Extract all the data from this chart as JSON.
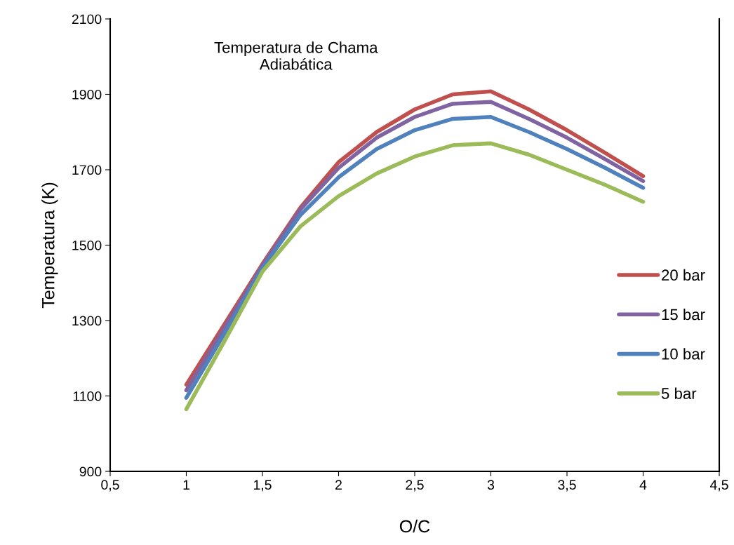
{
  "chart_data": {
    "type": "line",
    "title": "Temperatura de Chama\nAdiabática",
    "xlabel": "O/C",
    "ylabel": "Temperatura (K)",
    "x": [
      1,
      1.25,
      1.5,
      1.75,
      2,
      2.25,
      2.5,
      2.75,
      3,
      3.25,
      3.5,
      3.75,
      4
    ],
    "series": [
      {
        "name": "20 bar",
        "color": "#c0504d",
        "values": [
          1130,
          1290,
          1450,
          1600,
          1720,
          1800,
          1860,
          1900,
          1908,
          1860,
          1805,
          1745,
          1683
        ]
      },
      {
        "name": "15 bar",
        "color": "#8064a2",
        "values": [
          1115,
          1280,
          1445,
          1595,
          1705,
          1785,
          1840,
          1875,
          1880,
          1835,
          1785,
          1728,
          1670
        ]
      },
      {
        "name": "10 bar",
        "color": "#4f81bd",
        "values": [
          1095,
          1265,
          1440,
          1580,
          1680,
          1755,
          1805,
          1835,
          1840,
          1800,
          1755,
          1705,
          1652
        ]
      },
      {
        "name": "5 bar",
        "color": "#9bbb59",
        "values": [
          1065,
          1245,
          1430,
          1550,
          1630,
          1690,
          1735,
          1765,
          1770,
          1740,
          1700,
          1660,
          1615
        ]
      }
    ],
    "xlim": [
      0.5,
      4.5
    ],
    "xticks": [
      {
        "value": 0.5,
        "label": "0,5"
      },
      1,
      {
        "value": 1.5,
        "label": "1,5"
      },
      2,
      {
        "value": 2.5,
        "label": "2,5"
      },
      3,
      {
        "value": 3.5,
        "label": "3,5"
      },
      4,
      {
        "value": 4.5,
        "label": "4,5"
      }
    ],
    "ylim": [
      900,
      2100
    ],
    "yticks": [
      900,
      1100,
      1300,
      1500,
      1700,
      1900,
      2100
    ],
    "grid": false,
    "legend": "right",
    "marker": "none",
    "line_style": "solid"
  }
}
